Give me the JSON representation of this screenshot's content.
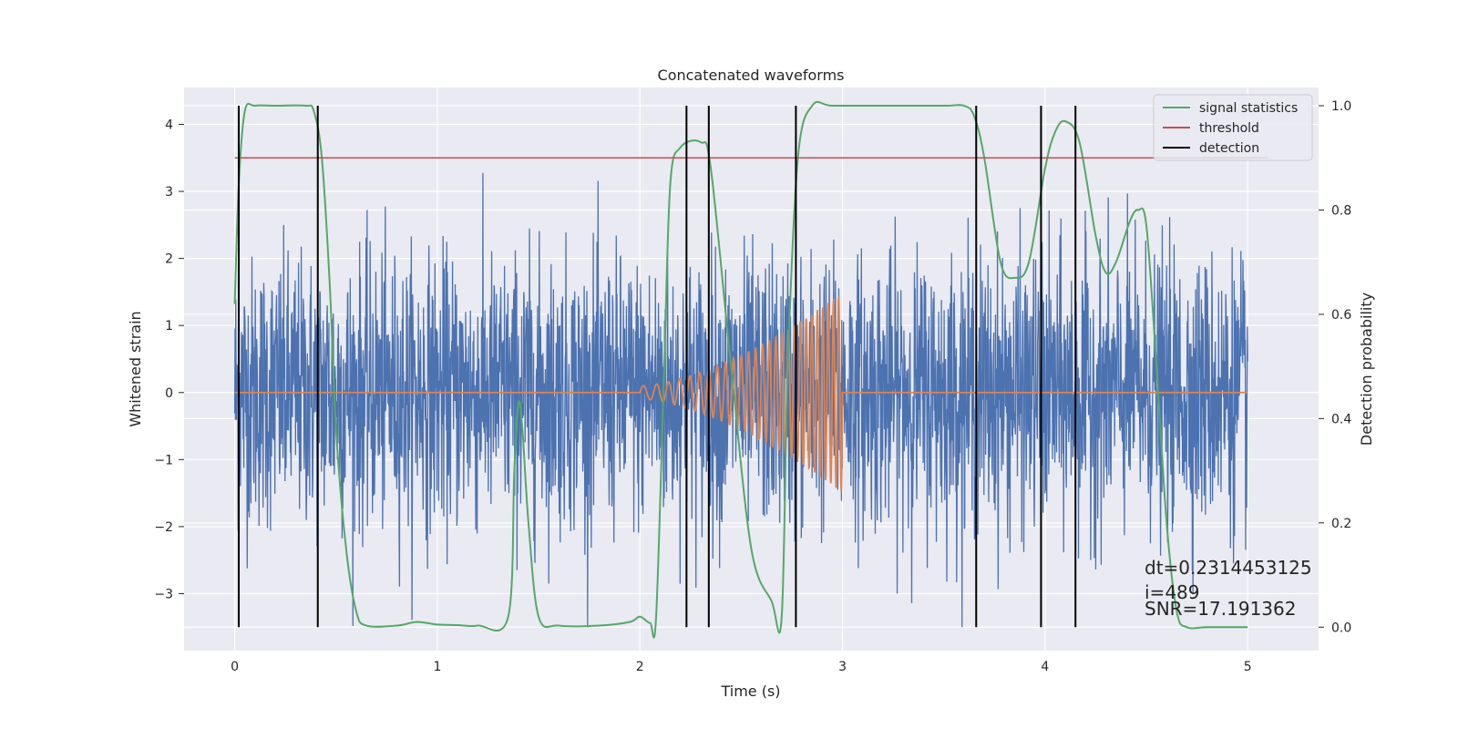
{
  "chart_data": {
    "type": "line",
    "title": "Concatenated waveforms",
    "xlabel": "Time (s)",
    "ylabel": "Whitened strain",
    "ylabel_right": "Detection probability",
    "xlim": [
      -0.25,
      5.35
    ],
    "ylim": [
      -3.85,
      4.55
    ],
    "ylim_right": [
      -0.045,
      1.035
    ],
    "x_ticks": [
      0,
      1,
      2,
      3,
      4,
      5
    ],
    "x_tick_labels": [
      "0",
      "1",
      "2",
      "3",
      "4",
      "5"
    ],
    "y_ticks": [
      -3,
      -2,
      -1,
      0,
      1,
      2,
      3,
      4
    ],
    "y_tick_labels": [
      "−3",
      "−2",
      "−1",
      "0",
      "1",
      "2",
      "3",
      "4"
    ],
    "y_right_ticks": [
      0.0,
      0.2,
      0.4,
      0.6,
      0.8,
      1.0
    ],
    "y_right_tick_labels": [
      "0.0",
      "0.2",
      "0.4",
      "0.6",
      "0.8",
      "1.0"
    ],
    "grid": true,
    "legend_position": "top-right",
    "legend": [
      {
        "label": "signal statistics",
        "color": "#55a868"
      },
      {
        "label": "threshold",
        "color": "#c44e52"
      },
      {
        "label": "detection",
        "color": "#000000"
      }
    ],
    "series": [
      {
        "id": "strain",
        "color": "#4c72b0",
        "description_x": [
          0,
          5
        ],
        "noise_sigma": 1.0,
        "noise_extremes": [
          -3.5,
          3.4
        ]
      },
      {
        "id": "waveform",
        "color": "#dd8452",
        "chirp_start": 2.0,
        "chirp_end": 3.0,
        "amplitude_start": 0.1,
        "amplitude_end": 1.5,
        "frequency_start": 14,
        "frequency_end": 40
      },
      {
        "name": "signal statistics",
        "color": "#55a868",
        "axis": "right",
        "x": [
          0,
          0.02,
          0.05,
          0.1,
          0.2,
          0.35,
          0.39,
          0.43,
          0.47,
          0.5,
          0.55,
          0.6,
          0.65,
          0.8,
          0.9,
          1.0,
          1.1,
          1.2,
          1.35,
          1.38,
          1.4,
          1.42,
          1.45,
          1.5,
          1.6,
          1.8,
          1.95,
          2.0,
          2.05,
          2.08,
          2.12,
          2.15,
          2.2,
          2.3,
          2.35,
          2.45,
          2.55,
          2.65,
          2.7,
          2.73,
          2.78,
          2.85,
          2.95,
          3.2,
          3.5,
          3.6,
          3.65,
          3.7,
          3.78,
          3.85,
          3.92,
          4.0,
          4.05,
          4.1,
          4.17,
          4.25,
          4.3,
          4.35,
          4.42,
          4.46,
          4.5,
          4.55,
          4.6,
          4.65,
          4.7,
          4.8,
          5.0
        ],
        "y": [
          0.62,
          0.85,
          0.99,
          1.0,
          1.0,
          1.0,
          0.99,
          0.9,
          0.65,
          0.38,
          0.15,
          0.03,
          0.003,
          0.003,
          0.01,
          0.005,
          0.004,
          0.003,
          0.02,
          0.3,
          0.43,
          0.38,
          0.2,
          0.02,
          0.003,
          0.003,
          0.01,
          0.02,
          0.008,
          0.02,
          0.5,
          0.85,
          0.92,
          0.93,
          0.88,
          0.5,
          0.15,
          0.05,
          0.02,
          0.5,
          0.9,
          1.0,
          1.0,
          1.0,
          1.0,
          1.0,
          0.98,
          0.9,
          0.7,
          0.67,
          0.7,
          0.88,
          0.95,
          0.97,
          0.93,
          0.75,
          0.68,
          0.7,
          0.78,
          0.8,
          0.77,
          0.5,
          0.2,
          0.03,
          0.0,
          0.0,
          0.0
        ]
      },
      {
        "name": "threshold",
        "color": "#c44e52",
        "axis": "right",
        "x": [
          0,
          5.1
        ],
        "y": [
          0.9,
          0.9
        ]
      }
    ],
    "detection_times": [
      0.02,
      0.41,
      2.23,
      2.34,
      2.77,
      3.66,
      3.98,
      4.15
    ],
    "annotations": [
      {
        "text": "dt=0.2314453125"
      },
      {
        "text": " i=489"
      },
      {
        "text": "SNR=17.191362"
      }
    ]
  }
}
